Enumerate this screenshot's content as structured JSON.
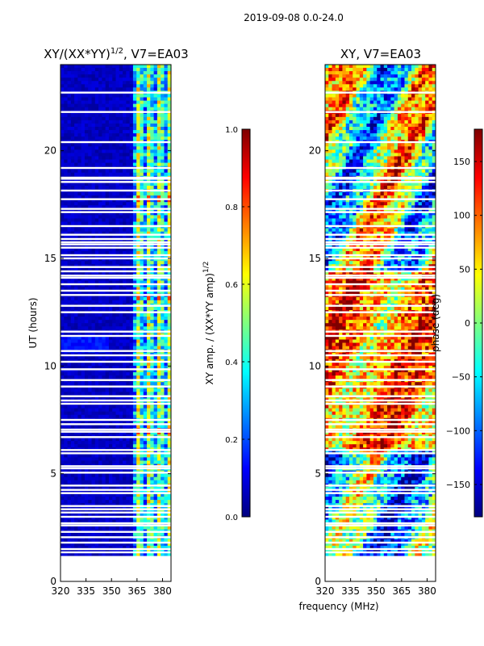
{
  "figure": {
    "suptitle": "2019-09-08 0.0-24.0",
    "xlabel_shared": "frequency (MHz)"
  },
  "colors": {
    "jet_stops": [
      "#00007f",
      "#0000ff",
      "#007fff",
      "#00ffff",
      "#7fff7f",
      "#ffff00",
      "#ff7f00",
      "#ff0000",
      "#7f0000"
    ]
  },
  "chart_data": [
    {
      "type": "heatmap",
      "title_main": "XY/(XX*YY)",
      "title_sup": "1/2",
      "title_tail": ", V7=EA03",
      "ylabel": "UT (hours)",
      "xlim": [
        320,
        385
      ],
      "ylim": [
        0,
        24
      ],
      "xticks": [
        320,
        335,
        350,
        365,
        380
      ],
      "xtick_labels": [
        "320",
        "335",
        "350",
        "365",
        "380"
      ],
      "yticks": [
        0,
        5,
        10,
        15,
        20
      ],
      "ytick_labels": [
        "0",
        "5",
        "10",
        "15",
        "20"
      ],
      "data_start_hour": 1.2,
      "band_start_mhz": 363,
      "colorbar": {
        "label_main": "XY amp. / (XX*YY amp)",
        "label_sup": "1/2",
        "range": [
          0.0,
          1.0
        ],
        "ticks": [
          0.0,
          0.2,
          0.4,
          0.6,
          0.8,
          1.0
        ],
        "tick_labels": [
          "0.0",
          "0.2",
          "0.4",
          "0.6",
          "0.8",
          "1.0"
        ]
      }
    },
    {
      "type": "heatmap",
      "title": "XY, V7=EA03",
      "xlim": [
        320,
        385
      ],
      "ylim": [
        0,
        24
      ],
      "xticks": [
        320,
        335,
        350,
        365,
        380
      ],
      "xtick_labels": [
        "320",
        "335",
        "350",
        "365",
        "380"
      ],
      "yticks": [
        0,
        5,
        10,
        15,
        20
      ],
      "ytick_labels": [
        "0",
        "5",
        "10",
        "15",
        "20"
      ],
      "data_start_hour": 1.2,
      "colorbar": {
        "label": "phase (deg)",
        "range": [
          -180,
          180
        ],
        "ticks": [
          150,
          100,
          50,
          0,
          -50,
          -100,
          -150
        ],
        "tick_labels": [
          "150",
          "100",
          "50",
          "0",
          "−50",
          "−100",
          "−150"
        ]
      }
    }
  ],
  "flagged_gaps_hours": [
    1.35,
    1.5,
    1.8,
    2.05,
    2.3,
    2.6,
    2.7,
    3.0,
    3.2,
    3.35,
    3.5,
    4.1,
    4.25,
    4.45,
    5.05,
    5.25,
    5.35,
    5.95,
    6.1,
    6.7,
    6.95,
    7.05,
    7.3,
    7.5,
    8.25,
    8.4,
    8.6,
    9.05,
    9.35,
    9.85,
    10.2,
    10.5,
    10.7,
    11.4,
    11.6,
    12.5,
    12.8,
    13.3,
    13.5,
    13.8,
    14.1,
    14.2,
    14.4,
    14.6,
    15.0,
    15.15,
    15.5,
    15.65,
    15.75,
    15.9,
    16.1,
    16.5,
    17.15,
    17.3,
    17.75,
    18.15,
    18.55,
    18.7,
    18.75,
    19.2,
    20.4,
    21.8,
    22.7
  ]
}
